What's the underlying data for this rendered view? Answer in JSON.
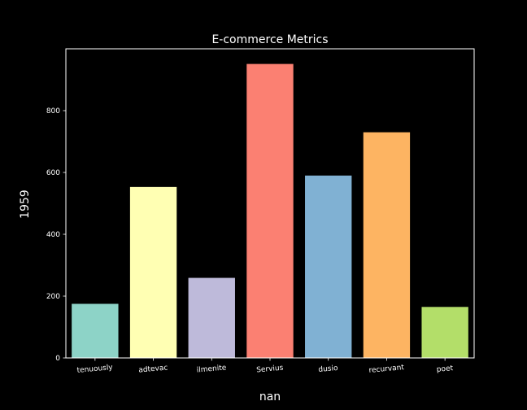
{
  "chart_data": {
    "type": "bar",
    "title": "E-commerce Metrics",
    "xlabel": "nan",
    "ylabel": "1959",
    "categories": [
      "tenuously",
      "adtevac",
      "ilmenite",
      "Servius",
      "dusio",
      "recurvant",
      "poet"
    ],
    "values": [
      175,
      553,
      259,
      951,
      590,
      730,
      165
    ],
    "colors": [
      "#8dd3c7",
      "#ffffb3",
      "#bebada",
      "#fb8072",
      "#80b1d3",
      "#fdb462",
      "#b3de69"
    ],
    "ylim": [
      0,
      1000
    ],
    "yticks": [
      0,
      200,
      400,
      600,
      800
    ],
    "ytick_labels": [
      "0",
      "200",
      "400",
      "600",
      "800"
    ],
    "grid": false,
    "legend": "none",
    "background": "#000000",
    "axis_color": "#ffffff"
  }
}
